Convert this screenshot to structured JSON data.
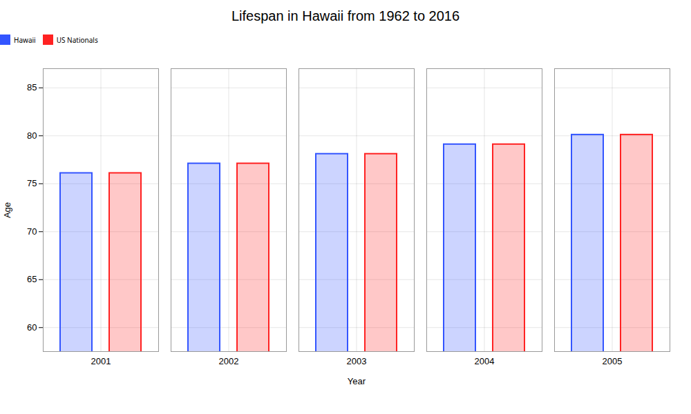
{
  "chart_data": {
    "type": "bar",
    "title": "Lifespan in Hawaii from 1962 to 2016",
    "x_label": "Year",
    "y_label": "Age",
    "categories": [
      "2001",
      "2002",
      "2003",
      "2004",
      "2005"
    ],
    "series": [
      {
        "name": "Hawaii",
        "color": "#3355ff",
        "values": [
          76.1,
          77.1,
          78.1,
          79.1,
          80.1
        ]
      },
      {
        "name": "US Nationals",
        "color": "#ff2222",
        "values": [
          76.1,
          77.1,
          78.1,
          79.1,
          80.1
        ]
      }
    ],
    "ylim": [
      57.5,
      87
    ],
    "yticks": [
      60,
      65,
      70,
      75,
      80,
      85
    ],
    "grid": true,
    "legend": "top"
  }
}
